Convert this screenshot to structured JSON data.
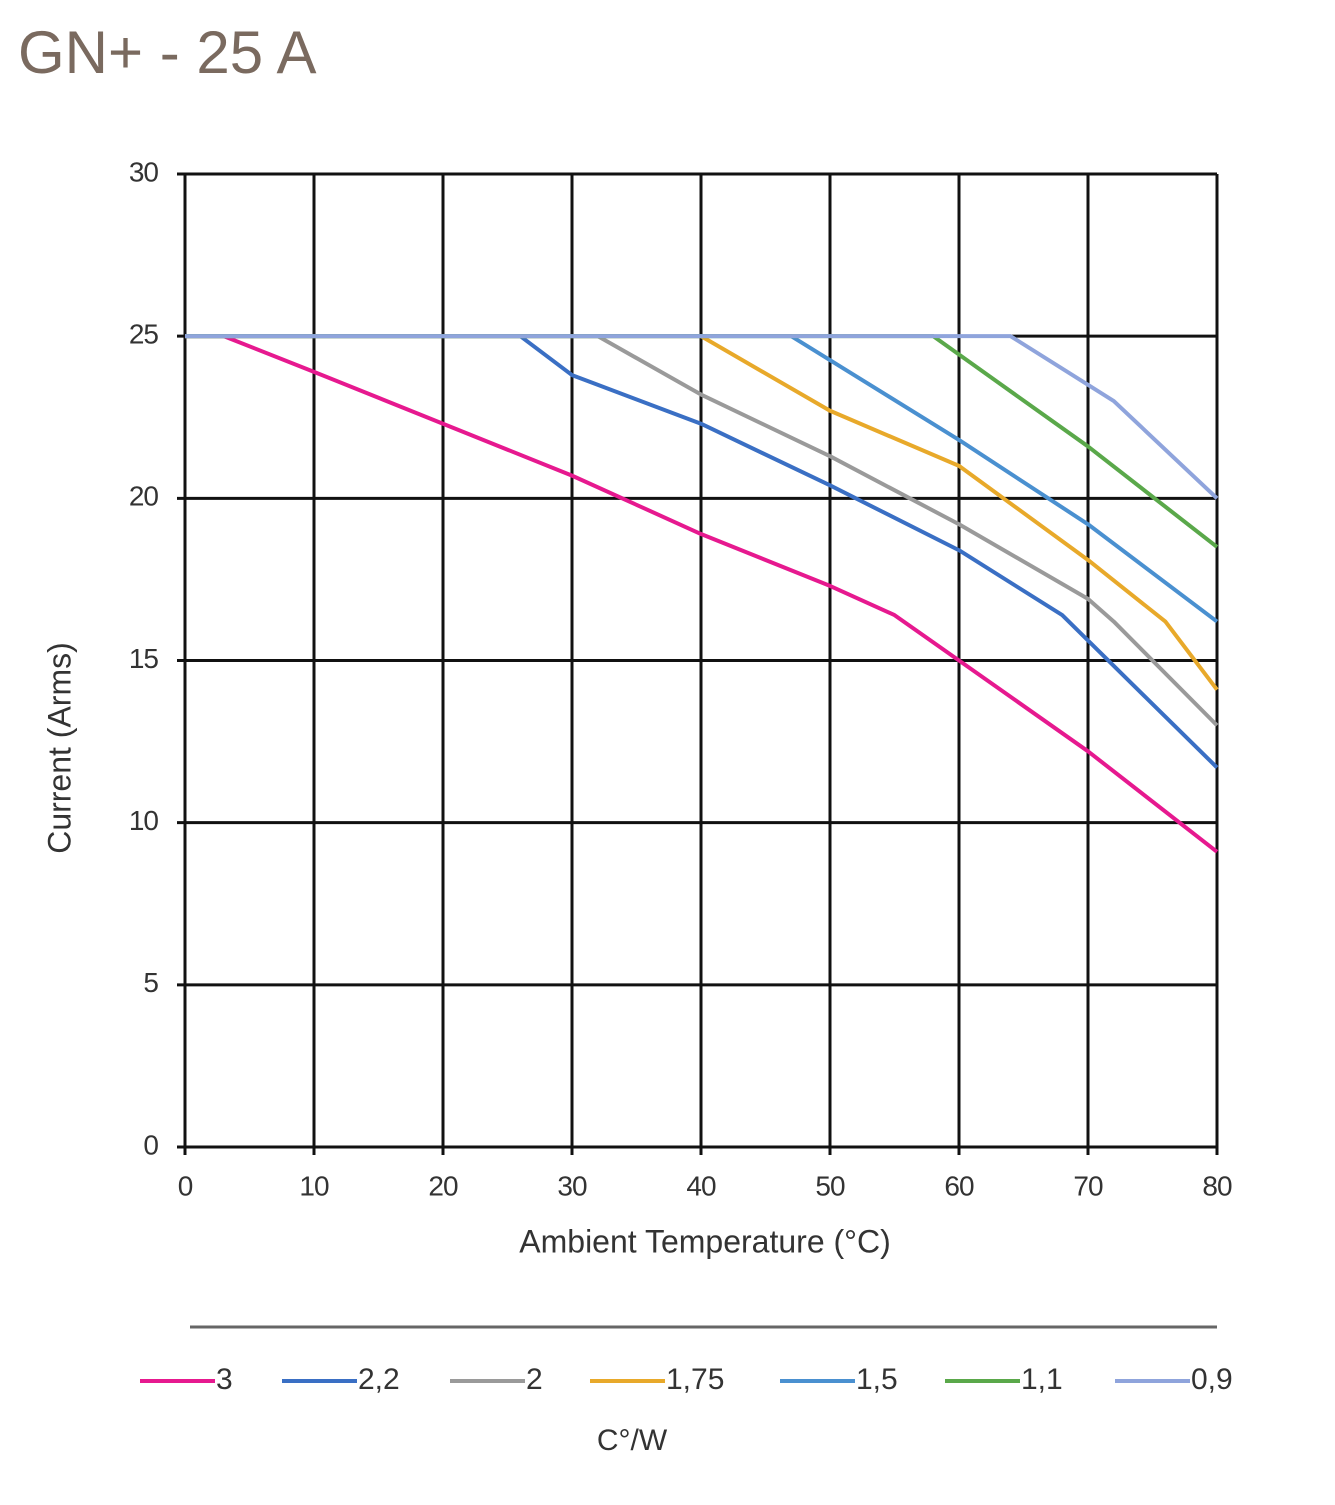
{
  "chart_data": {
    "type": "line",
    "title": "GN+ - 25 A",
    "x_label": "Ambient Temperature (°C)",
    "y_label": "Current (Arms)",
    "legend_title": "C°/W",
    "xlim": [
      0,
      80
    ],
    "xticks": [
      0,
      10,
      20,
      30,
      40,
      50,
      60,
      70,
      80
    ],
    "ylim": [
      0,
      30
    ],
    "yticks": [
      0,
      5,
      10,
      15,
      20,
      25,
      30
    ],
    "grid": true,
    "legend": "bottom",
    "series": [
      {
        "name": "3",
        "color": "#e6198f",
        "x": [
          0,
          3,
          10,
          20,
          30,
          40,
          50,
          55,
          60,
          70,
          80
        ],
        "values": [
          25,
          25,
          23.9,
          22.3,
          20.7,
          18.9,
          17.3,
          16.4,
          15,
          12.2,
          9.1
        ]
      },
      {
        "name": "2,2",
        "color": "#3a6fc4",
        "x": [
          0,
          26,
          30,
          40,
          50,
          60,
          68,
          80
        ],
        "values": [
          25,
          25,
          23.8,
          22.3,
          20.4,
          18.4,
          16.4,
          11.7
        ]
      },
      {
        "name": "2",
        "color": "#9a9a9a",
        "x": [
          0,
          32,
          40,
          50,
          60,
          70,
          72,
          80
        ],
        "values": [
          25,
          25,
          23.2,
          21.3,
          19.2,
          16.9,
          16.2,
          13
        ]
      },
      {
        "name": "1,75",
        "color": "#e8a92a",
        "x": [
          0,
          40,
          50,
          60,
          70,
          76,
          80
        ],
        "values": [
          25,
          25,
          22.7,
          21,
          18.1,
          16.2,
          14.1
        ]
      },
      {
        "name": "1,5",
        "color": "#4a90d0",
        "x": [
          0,
          47,
          60,
          70,
          80
        ],
        "values": [
          25,
          25,
          21.8,
          19.2,
          16.2
        ]
      },
      {
        "name": "1,1",
        "color": "#5aa84a",
        "x": [
          0,
          58,
          70,
          80
        ],
        "values": [
          25,
          25,
          21.6,
          18.5
        ]
      },
      {
        "name": "0,9",
        "color": "#8fa4dc",
        "x": [
          0,
          64,
          72,
          80
        ],
        "values": [
          25,
          25,
          23,
          20
        ]
      }
    ]
  }
}
